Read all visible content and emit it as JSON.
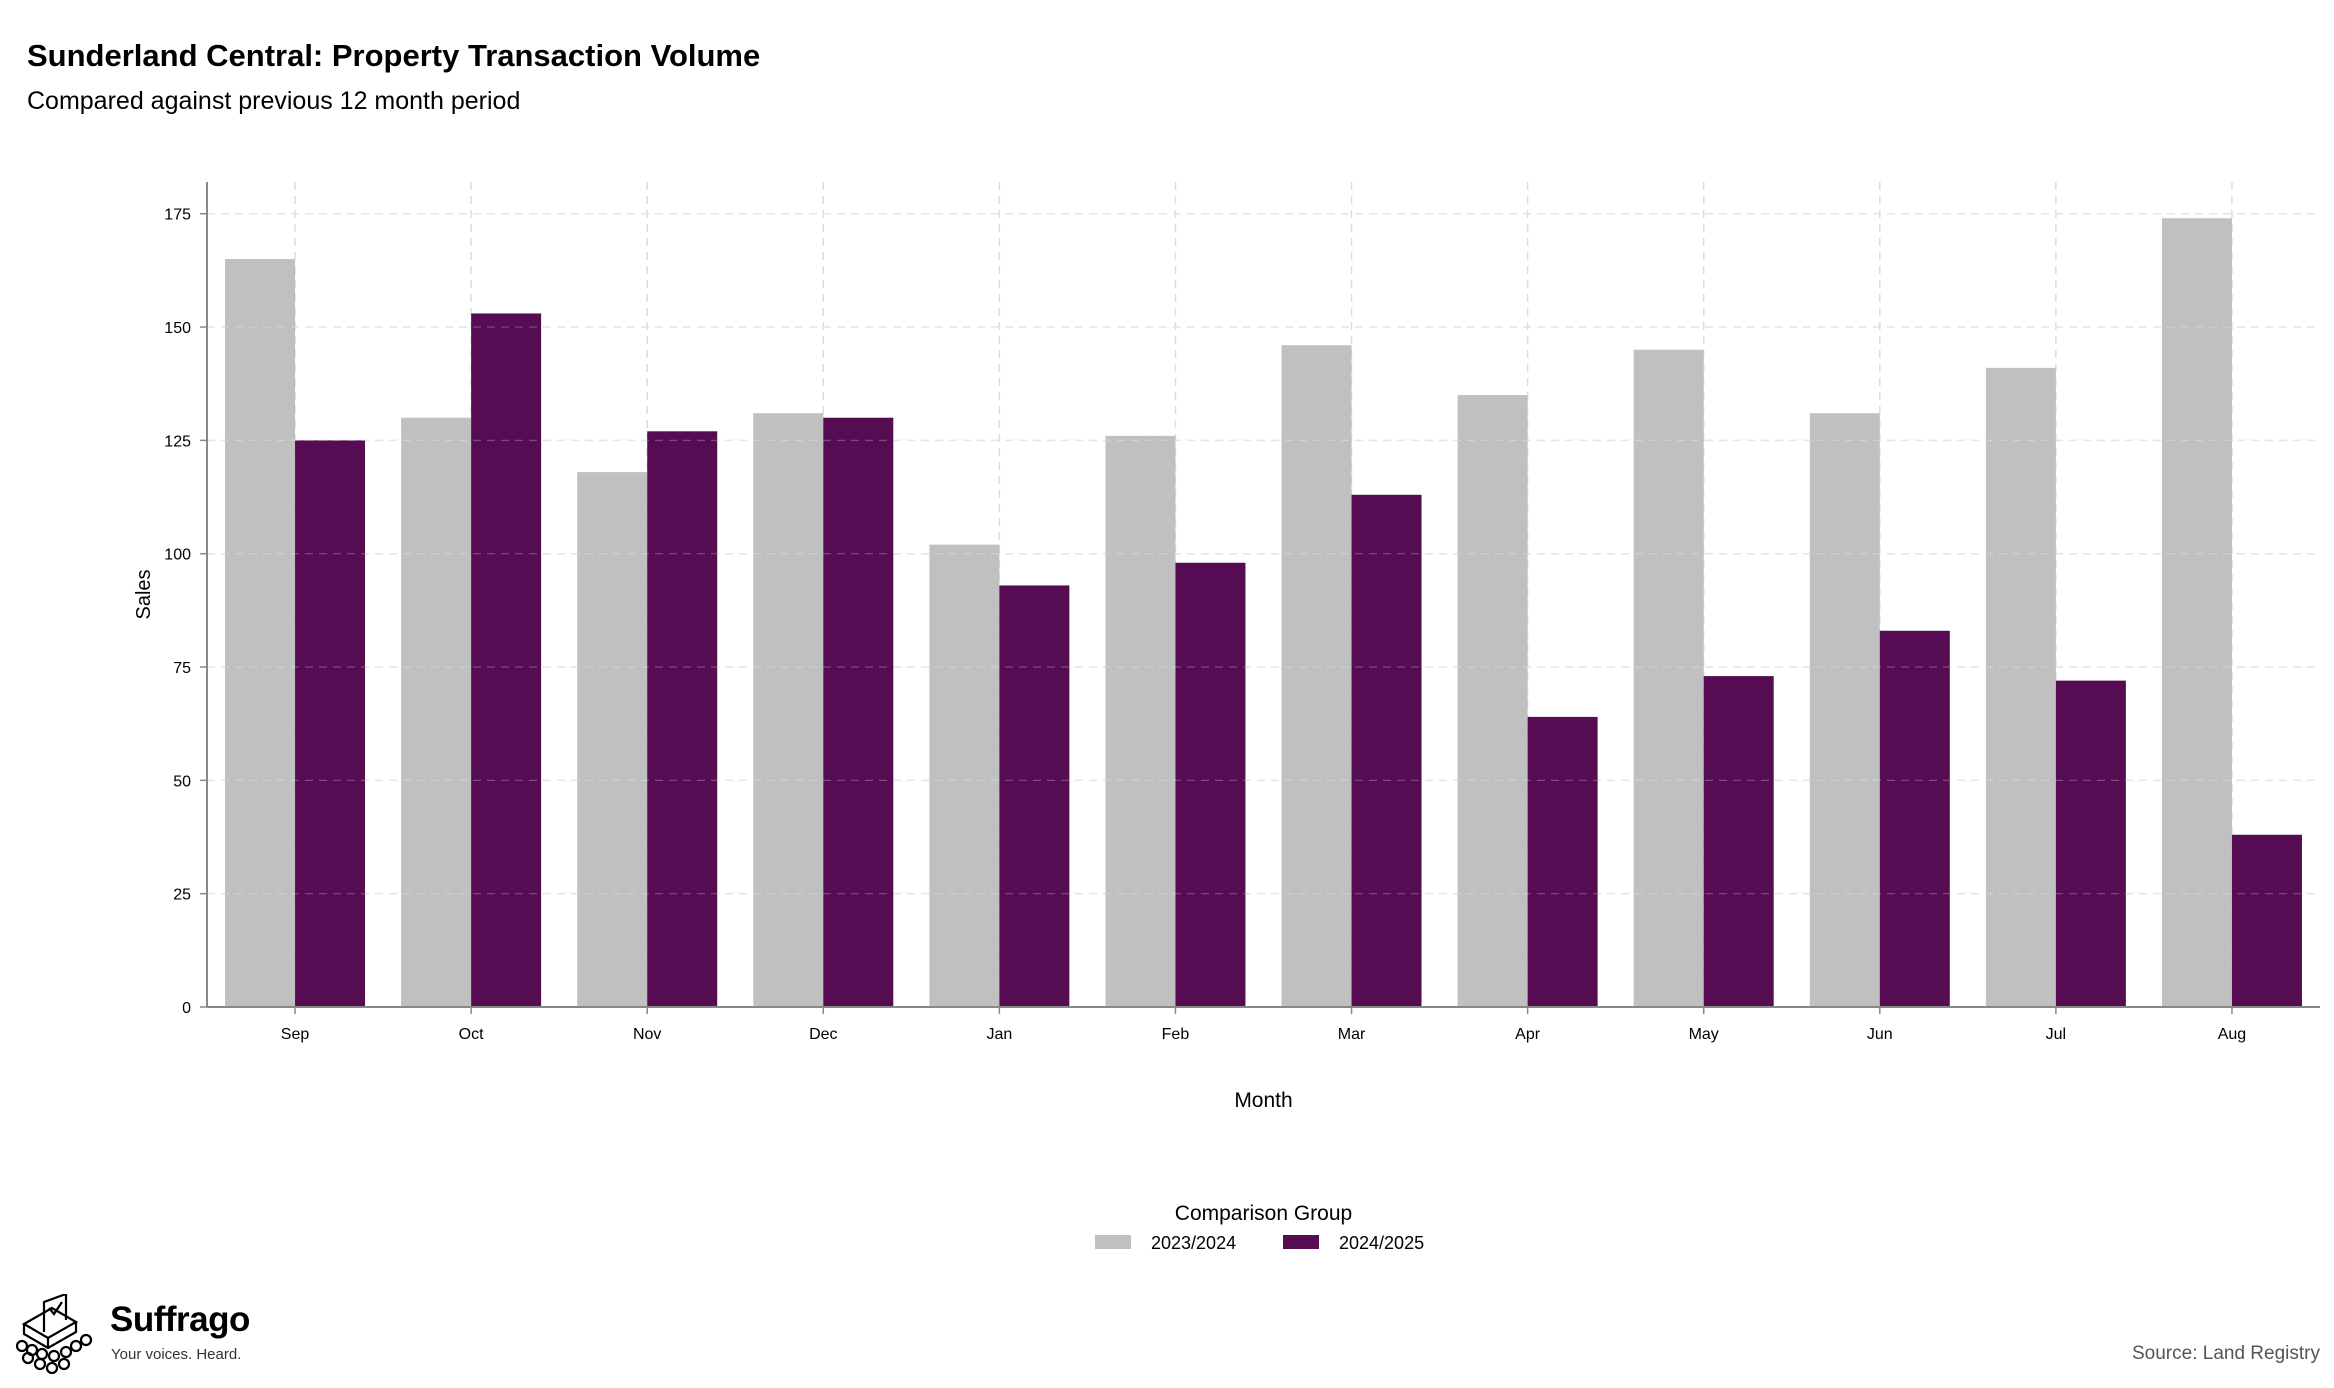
{
  "header": {
    "title": "Sunderland Central: Property Transaction Volume",
    "subtitle": "Compared against previous 12 month period"
  },
  "footer": {
    "brand": "Suffrago",
    "tagline": "Your voices. Heard.",
    "source": "Source: Land Registry"
  },
  "colors": {
    "series_2023": "#c0c0c0",
    "series_2024": "#560c52",
    "grid": "#dddddd",
    "axis": "#888888"
  },
  "chart_data": {
    "type": "bar",
    "xlabel": "Month",
    "ylabel": "Sales",
    "ylim": [
      0,
      182
    ],
    "yticks": [
      0,
      25,
      50,
      75,
      100,
      125,
      150,
      175
    ],
    "grid": "dashed, both axes",
    "legend_title": "Comparison Group",
    "legend_position": "bottom-center",
    "categories": [
      "Sep",
      "Oct",
      "Nov",
      "Dec",
      "Jan",
      "Feb",
      "Mar",
      "Apr",
      "May",
      "Jun",
      "Jul",
      "Aug"
    ],
    "series": [
      {
        "name": "2023/2024",
        "values": [
          165,
          130,
          118,
          131,
          102,
          126,
          146,
          135,
          145,
          131,
          141,
          174
        ]
      },
      {
        "name": "2024/2025",
        "values": [
          125,
          153,
          127,
          130,
          93,
          98,
          113,
          64,
          73,
          83,
          72,
          38
        ]
      }
    ]
  }
}
